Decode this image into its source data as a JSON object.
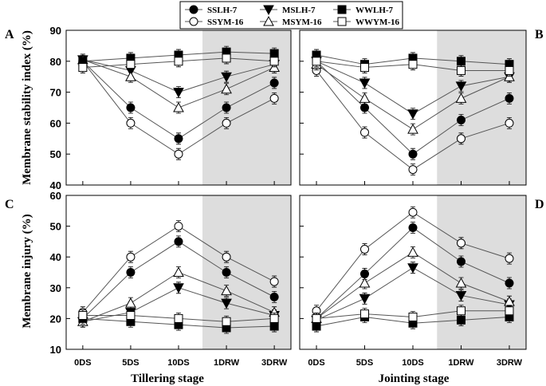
{
  "figure": {
    "y_title_top": "Membrane stability index (%)",
    "y_title_bottom": "Membrane injury (%)",
    "x_title_left": "Tillering stage",
    "x_title_right": "Jointing stage"
  },
  "legend": [
    {
      "name": "SSLH-7",
      "marker": "circle",
      "fill": "#000000"
    },
    {
      "name": "MSLH-7",
      "marker": "triangle-down",
      "fill": "#000000"
    },
    {
      "name": "WWLH-7",
      "marker": "square",
      "fill": "#000000"
    },
    {
      "name": "SSYM-16",
      "marker": "circle",
      "fill": "#ffffff"
    },
    {
      "name": "MSYM-16",
      "marker": "triangle-up",
      "fill": "#ffffff"
    },
    {
      "name": "WWYM-16",
      "marker": "square",
      "fill": "#ffffff"
    }
  ],
  "colors": {
    "shade": "#dddddd",
    "line": "#555555",
    "marker_stroke": "#000000"
  },
  "chart_data": [
    {
      "type": "line",
      "panel": "A",
      "title": "",
      "xlabel": "",
      "ylabel": "Membrane stability index (%)",
      "categories": [
        "0DS",
        "5DS",
        "10DS",
        "1DRW",
        "3DRW"
      ],
      "ylim": [
        40,
        90
      ],
      "yticks": [
        40,
        50,
        60,
        70,
        80,
        90
      ],
      "shaded_from_category": "1DRW",
      "series": [
        {
          "name": "SSLH-7",
          "values": [
            80,
            65,
            55,
            65,
            73
          ]
        },
        {
          "name": "SSYM-16",
          "values": [
            80,
            60,
            50,
            60,
            68
          ]
        },
        {
          "name": "MSLH-7",
          "values": [
            80.5,
            77,
            70,
            75,
            79
          ]
        },
        {
          "name": "MSYM-16",
          "values": [
            80.5,
            75,
            65,
            71,
            78
          ]
        },
        {
          "name": "WWLH-7",
          "values": [
            80,
            81,
            82,
            83,
            82.5
          ]
        },
        {
          "name": "WWYM-16",
          "values": [
            78,
            79,
            80,
            81,
            80
          ]
        }
      ]
    },
    {
      "type": "line",
      "panel": "B",
      "title": "",
      "xlabel": "",
      "ylabel": "",
      "categories": [
        "0DS",
        "5DS",
        "10DS",
        "1DRW",
        "3DRW"
      ],
      "ylim": [
        40,
        90
      ],
      "yticks": [
        40,
        50,
        60,
        70,
        80,
        90
      ],
      "shaded_from_category": "1DRW",
      "series": [
        {
          "name": "SSLH-7",
          "values": [
            80,
            65,
            50,
            61,
            68
          ]
        },
        {
          "name": "SSYM-16",
          "values": [
            77,
            57,
            45,
            55,
            60
          ]
        },
        {
          "name": "MSLH-7",
          "values": [
            80,
            73,
            63,
            72,
            75
          ]
        },
        {
          "name": "MSYM-16",
          "values": [
            79,
            68,
            58,
            68,
            75
          ]
        },
        {
          "name": "WWLH-7",
          "values": [
            82,
            79,
            81,
            80,
            79
          ]
        },
        {
          "name": "WWYM-16",
          "values": [
            80,
            78,
            79,
            77,
            77
          ]
        }
      ]
    },
    {
      "type": "line",
      "panel": "C",
      "title": "",
      "xlabel": "Tillering stage",
      "ylabel": "Membrane injury (%)",
      "categories": [
        "0DS",
        "5DS",
        "10DS",
        "1DRW",
        "3DRW"
      ],
      "ylim": [
        10,
        60
      ],
      "yticks": [
        10,
        20,
        30,
        40,
        50,
        60
      ],
      "shaded_from_category": "1DRW",
      "series": [
        {
          "name": "SSLH-7",
          "values": [
            20,
            35,
            45,
            35,
            27
          ]
        },
        {
          "name": "SSYM-16",
          "values": [
            22,
            40,
            50,
            40,
            32
          ]
        },
        {
          "name": "MSLH-7",
          "values": [
            19,
            22,
            30,
            25,
            21
          ]
        },
        {
          "name": "MSYM-16",
          "values": [
            19,
            25,
            35,
            29,
            22
          ]
        },
        {
          "name": "WWLH-7",
          "values": [
            20,
            19,
            18,
            17,
            17.5
          ]
        },
        {
          "name": "WWYM-16",
          "values": [
            21,
            21,
            20,
            19,
            20
          ]
        }
      ]
    },
    {
      "type": "line",
      "panel": "D",
      "title": "",
      "xlabel": "Jointing stage",
      "ylabel": "",
      "categories": [
        "0DS",
        "5DS",
        "10DS",
        "1DRW",
        "3DRW"
      ],
      "ylim": [
        10,
        60
      ],
      "yticks": [
        10,
        20,
        30,
        40,
        50,
        60
      ],
      "shaded_from_category": "1DRW",
      "series": [
        {
          "name": "SSLH-7",
          "values": [
            20,
            34.5,
            49.5,
            38.5,
            31.5
          ]
        },
        {
          "name": "SSYM-16",
          "values": [
            22.5,
            42.5,
            54.5,
            44.5,
            39.5
          ]
        },
        {
          "name": "MSLH-7",
          "values": [
            19.5,
            26.5,
            36.5,
            27.5,
            24.5
          ]
        },
        {
          "name": "MSYM-16",
          "values": [
            20,
            31.5,
            41.5,
            31.5,
            25.5
          ]
        },
        {
          "name": "WWLH-7",
          "values": [
            17.5,
            20.5,
            18.5,
            19.5,
            20.5
          ]
        },
        {
          "name": "WWYM-16",
          "values": [
            20,
            21.5,
            20.5,
            22.5,
            22.5
          ]
        }
      ]
    }
  ]
}
